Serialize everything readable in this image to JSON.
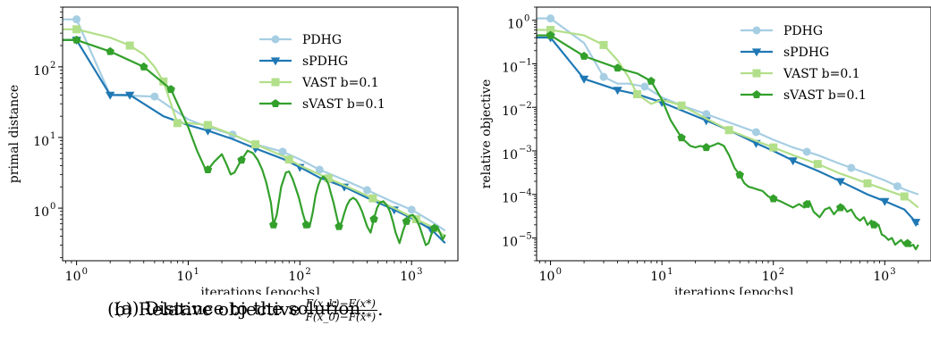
{
  "chart_data": [
    {
      "type": "line",
      "xscale": "log",
      "yscale": "log",
      "xlim": [
        0.75,
        2600
      ],
      "ylim": [
        0.18,
        700
      ],
      "xlabel": "iterations [epochs]",
      "ylabel": "primal distance",
      "xticks": [
        {
          "v": 1,
          "m": "0"
        },
        {
          "v": 10,
          "m": "1"
        },
        {
          "v": 100,
          "m": "2"
        },
        {
          "v": 1000,
          "m": "3"
        }
      ],
      "yticks": [
        {
          "v": 1,
          "m": "0"
        },
        {
          "v": 10,
          "m": "1"
        },
        {
          "v": 100,
          "m": "2"
        }
      ],
      "grid": false,
      "legend_position": "top-right",
      "series": [
        {
          "name": "PDHG",
          "color": "#a6cee3",
          "marker": "circle",
          "x": [
            0.75,
            1,
            2,
            5,
            10,
            15,
            25,
            40,
            70,
            100,
            150,
            250,
            400,
            700,
            1000,
            1500,
            2000
          ],
          "y": [
            470,
            470,
            40,
            38,
            18,
            14,
            11,
            8,
            6.3,
            4.9,
            3.5,
            2.5,
            1.8,
            1.2,
            0.95,
            0.65,
            0.48
          ],
          "markers_x": [
            1,
            5,
            25,
            70,
            150,
            400,
            1000
          ]
        },
        {
          "name": "sPDHG",
          "color": "#1f78b4",
          "marker": "triangle-down",
          "x": [
            0.75,
            1,
            2,
            3,
            4,
            6,
            10,
            15,
            25,
            40,
            70,
            100,
            150,
            250,
            400,
            700,
            1000,
            1500,
            2000
          ],
          "y": [
            240,
            240,
            40,
            40,
            30,
            20,
            15,
            12.5,
            9.5,
            7,
            5,
            3.8,
            2.7,
            2,
            1.4,
            0.95,
            0.72,
            0.5,
            0.32
          ],
          "markers_x": [
            1,
            2,
            3,
            15,
            40,
            100,
            250,
            700,
            1500
          ]
        },
        {
          "name": "VAST b=0.1",
          "color": "#b2df8a",
          "marker": "square",
          "x": [
            0.75,
            1,
            2,
            3,
            4,
            5,
            6,
            8,
            10,
            15,
            25,
            40,
            70,
            100,
            150,
            250,
            400,
            700,
            1000,
            1500,
            2000
          ],
          "y": [
            340,
            340,
            260,
            200,
            150,
            100,
            62,
            16,
            16,
            15,
            11,
            8,
            5.5,
            4,
            3,
            2.1,
            1.5,
            1,
            0.75,
            0.55,
            0.4
          ],
          "markers_x": [
            1,
            3,
            6,
            8,
            15,
            40,
            80,
            180,
            450,
            1100
          ]
        },
        {
          "name": "sVAST b=0.1",
          "color": "#33a02c",
          "marker": "pentagon",
          "x": [
            0.75,
            1,
            2,
            4,
            7,
            10,
            12,
            14,
            15,
            17,
            20,
            22,
            24,
            26,
            28,
            30,
            34,
            38,
            42,
            46,
            50,
            55,
            58,
            62,
            68,
            75,
            80,
            86,
            92,
            98,
            106,
            114,
            122,
            130,
            138,
            146,
            154,
            162,
            170,
            180,
            190,
            200,
            212,
            224,
            236,
            250,
            264,
            280,
            300,
            320,
            340,
            360,
            380,
            400,
            430,
            460,
            490,
            520,
            560,
            600,
            640,
            680,
            720,
            780,
            840,
            900,
            960,
            1030,
            1100,
            1180,
            1260,
            1340,
            1420,
            1500,
            1600,
            1700,
            1800,
            1900,
            2000
          ],
          "y": [
            240,
            240,
            165,
            100,
            48,
            14,
            6.5,
            3.8,
            3.5,
            4.5,
            5.8,
            4.2,
            3,
            3.2,
            4,
            4.8,
            6.5,
            6,
            4.8,
            3.5,
            2.3,
            1.2,
            0.58,
            0.8,
            2,
            3.2,
            3.3,
            2.6,
            1.9,
            1.4,
            0.85,
            0.58,
            0.54,
            0.85,
            1.5,
            2.1,
            2.6,
            2.8,
            2.6,
            2.2,
            1.6,
            1.2,
            0.8,
            0.55,
            0.62,
            0.85,
            1.1,
            1.3,
            1.4,
            1.3,
            1.1,
            0.9,
            0.7,
            0.55,
            0.45,
            0.7,
            1,
            1.2,
            1.25,
            1.1,
            0.9,
            0.65,
            0.45,
            0.32,
            0.48,
            0.65,
            0.78,
            0.8,
            0.7,
            0.55,
            0.4,
            0.3,
            0.32,
            0.42,
            0.52,
            0.55,
            0.45,
            0.36,
            0.42
          ],
          "markers_x": [
            1,
            2,
            4,
            7,
            15,
            30,
            58,
            114,
            224,
            460,
            900,
            1600
          ]
        }
      ]
    },
    {
      "type": "line",
      "xscale": "log",
      "yscale": "log",
      "xlim": [
        0.75,
        2600
      ],
      "ylim": [
        3e-06,
        2
      ],
      "xlabel": "iterations [epochs]",
      "ylabel": "relative objective",
      "xticks": [
        {
          "v": 1,
          "m": "0"
        },
        {
          "v": 10,
          "m": "1"
        },
        {
          "v": 100,
          "m": "2"
        },
        {
          "v": 1000,
          "m": "3"
        }
      ],
      "yticks": [
        {
          "v": 1,
          "m": "0"
        },
        {
          "v": 0.1,
          "m": "−1"
        },
        {
          "v": 0.01,
          "m": "−2"
        },
        {
          "v": 0.001,
          "m": "−3"
        },
        {
          "v": 0.0001,
          "m": "−4"
        },
        {
          "v": 1e-05,
          "m": "−5"
        }
      ],
      "grid": false,
      "legend_position": "top-right",
      "series": [
        {
          "name": "PDHG",
          "color": "#a6cee3",
          "marker": "circle",
          "x": [
            0.75,
            1,
            2,
            3,
            4,
            5,
            7,
            10,
            15,
            25,
            40,
            70,
            100,
            150,
            250,
            400,
            700,
            1000,
            1500,
            2000
          ],
          "y": [
            1.1,
            1.1,
            0.3,
            0.05,
            0.035,
            0.035,
            0.03,
            0.017,
            0.011,
            0.007,
            0.0045,
            0.0027,
            0.0018,
            0.0012,
            0.0008,
            0.0005,
            0.0003,
            0.00021,
            0.00013,
            0.0001
          ],
          "markers_x": [
            1,
            3,
            7,
            25,
            70,
            200,
            500,
            1300
          ]
        },
        {
          "name": "sPDHG",
          "color": "#1f78b4",
          "marker": "triangle-down",
          "x": [
            0.75,
            1,
            2,
            3,
            4,
            6,
            10,
            15,
            25,
            40,
            70,
            100,
            150,
            250,
            400,
            700,
            1000,
            1500,
            2000
          ],
          "y": [
            0.4,
            0.4,
            0.045,
            0.032,
            0.025,
            0.02,
            0.013,
            0.0085,
            0.005,
            0.003,
            0.0015,
            0.001,
            0.0006,
            0.00035,
            0.0002,
            0.0001,
            7e-05,
            4.5e-05,
            2e-05
          ],
          "markers_x": [
            1,
            2,
            4,
            10,
            25,
            70,
            150,
            400,
            1000,
            1900
          ]
        },
        {
          "name": "VAST b=0.1",
          "color": "#b2df8a",
          "marker": "square",
          "x": [
            0.75,
            1,
            2,
            3,
            4,
            5,
            6,
            8,
            10,
            15,
            25,
            40,
            70,
            100,
            150,
            250,
            400,
            700,
            1000,
            1500,
            2000
          ],
          "y": [
            0.6,
            0.6,
            0.45,
            0.27,
            0.12,
            0.05,
            0.02,
            0.012,
            0.015,
            0.011,
            0.0055,
            0.003,
            0.0017,
            0.0012,
            0.0008,
            0.0005,
            0.0003,
            0.00018,
            0.00013,
            9e-05,
            5e-05
          ],
          "markers_x": [
            1,
            3,
            6,
            15,
            40,
            100,
            250,
            700,
            1500
          ]
        },
        {
          "name": "sVAST b=0.1",
          "color": "#33a02c",
          "marker": "pentagon",
          "x": [
            0.75,
            1,
            2,
            4,
            6,
            8,
            10,
            12,
            15,
            18,
            20,
            22,
            25,
            28,
            32,
            36,
            40,
            45,
            50,
            55,
            60,
            66,
            72,
            80,
            90,
            100,
            115,
            130,
            150,
            170,
            190,
            210,
            230,
            260,
            290,
            320,
            350,
            380,
            420,
            460,
            500,
            550,
            600,
            650,
            700,
            760,
            820,
            880,
            940,
            1000,
            1080,
            1160,
            1240,
            1320,
            1400,
            1500,
            1600,
            1700,
            1800,
            1900,
            2000
          ],
          "y": [
            0.45,
            0.45,
            0.15,
            0.08,
            0.06,
            0.04,
            0.015,
            0.005,
            0.002,
            0.0013,
            0.0012,
            0.0013,
            0.0012,
            0.0013,
            0.0015,
            0.0013,
            0.0008,
            0.0004,
            0.00028,
            0.00018,
            0.00015,
            0.00014,
            0.00013,
            0.00012,
            9e-05,
            8e-05,
            7e-05,
            6e-05,
            5e-05,
            6e-05,
            5e-05,
            7e-05,
            4e-05,
            3e-05,
            4.5e-05,
            5e-05,
            3.5e-05,
            4.5e-05,
            5.5e-05,
            4e-05,
            4.5e-05,
            3e-05,
            2.5e-05,
            3e-05,
            2e-05,
            2.5e-05,
            1.8e-05,
            2e-05,
            1.2e-05,
            1.1e-05,
            9e-06,
            1e-05,
            7e-06,
            8e-06,
            9e-06,
            7e-06,
            7.5e-06,
            6.5e-06,
            7e-06,
            5.5e-06,
            7e-06
          ],
          "markers_x": [
            1,
            2,
            4,
            8,
            15,
            25,
            50,
            100,
            200,
            400,
            800,
            1600
          ]
        }
      ]
    }
  ],
  "captions": {
    "a": "(a) Distance to the solution.",
    "b": "(b) Relative objective",
    "b_num": "F(x_k)−F(x*)",
    "b_den": "F(x_0)−F(x*)"
  }
}
